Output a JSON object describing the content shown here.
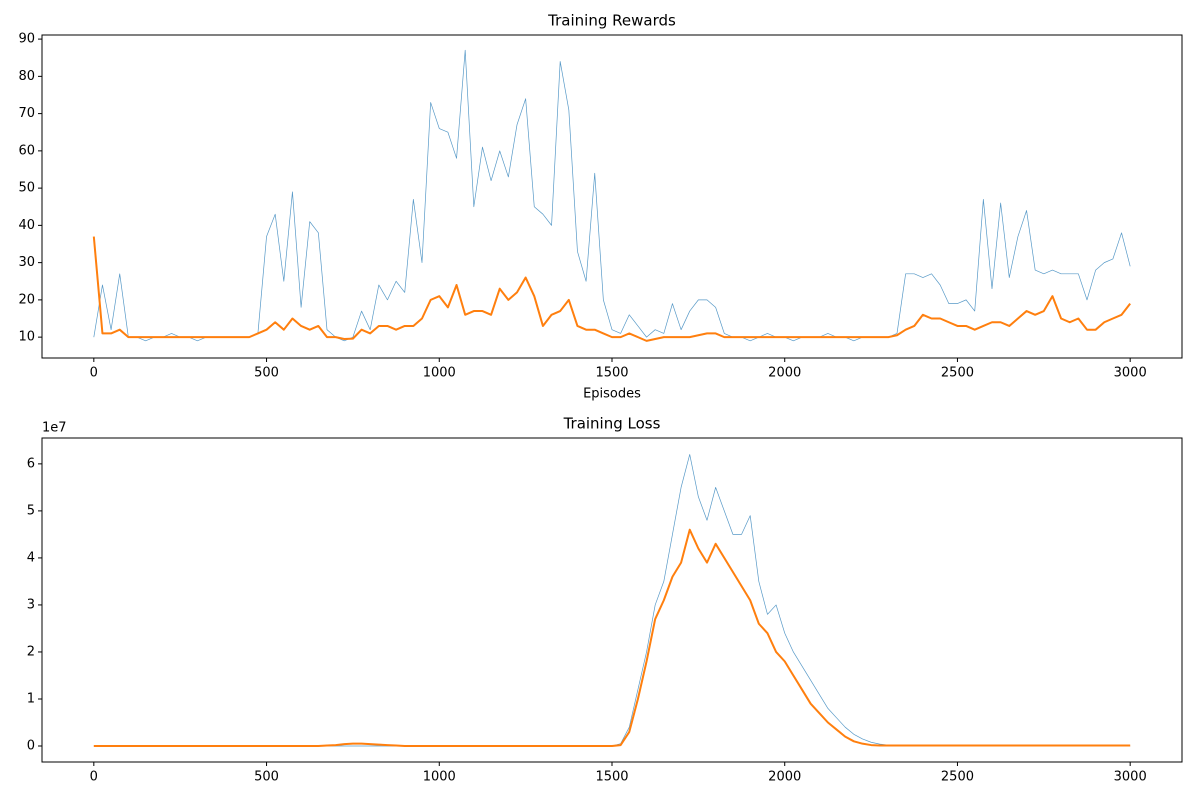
{
  "chart_data": [
    {
      "type": "line",
      "title": "Training Rewards",
      "xlabel": "Episodes",
      "x": [
        0,
        25,
        50,
        75,
        100,
        125,
        150,
        175,
        200,
        225,
        250,
        275,
        300,
        325,
        350,
        375,
        400,
        425,
        450,
        475,
        500,
        525,
        550,
        575,
        600,
        625,
        650,
        675,
        700,
        725,
        750,
        775,
        800,
        825,
        850,
        875,
        900,
        925,
        950,
        975,
        1000,
        1025,
        1050,
        1075,
        1100,
        1125,
        1150,
        1175,
        1200,
        1225,
        1250,
        1275,
        1300,
        1325,
        1350,
        1375,
        1400,
        1425,
        1450,
        1475,
        1500,
        1525,
        1550,
        1575,
        1600,
        1625,
        1650,
        1675,
        1700,
        1725,
        1750,
        1775,
        1800,
        1825,
        1850,
        1875,
        1900,
        1925,
        1950,
        1975,
        2000,
        2025,
        2050,
        2075,
        2100,
        2125,
        2150,
        2175,
        2200,
        2225,
        2250,
        2275,
        2300,
        2325,
        2350,
        2375,
        2400,
        2425,
        2450,
        2475,
        2500,
        2525,
        2550,
        2575,
        2600,
        2625,
        2650,
        2675,
        2700,
        2725,
        2750,
        2775,
        2800,
        2825,
        2850,
        2875,
        2900,
        2925,
        2950,
        2975,
        3000
      ],
      "series": [
        {
          "color": "#1f77b4",
          "values": [
            10,
            24,
            12,
            27,
            10,
            10,
            9,
            10,
            10,
            11,
            10,
            10,
            9,
            10,
            10,
            10,
            10,
            10,
            10,
            11,
            37,
            43,
            25,
            49,
            18,
            41,
            38,
            12,
            10,
            9,
            10,
            17,
            12,
            24,
            20,
            25,
            22,
            47,
            30,
            73,
            66,
            65,
            58,
            87,
            45,
            61,
            52,
            60,
            53,
            67,
            74,
            45,
            43,
            40,
            84,
            71,
            33,
            25,
            54,
            20,
            12,
            11,
            16,
            13,
            10,
            12,
            11,
            19,
            12,
            17,
            20,
            20,
            18,
            11,
            10,
            10,
            9,
            10,
            11,
            10,
            10,
            9,
            10,
            10,
            10,
            11,
            10,
            10,
            9,
            10,
            10,
            10,
            10,
            11,
            27,
            27,
            26,
            27,
            24,
            19,
            19,
            20,
            17,
            47,
            23,
            46,
            26,
            37,
            44,
            28,
            27,
            28,
            27,
            27,
            27,
            20,
            28,
            30,
            31,
            38,
            29
          ]
        },
        {
          "color": "#ff7f0e",
          "values": [
            37,
            11,
            11,
            12,
            10,
            10,
            10,
            10,
            10,
            10,
            10,
            10,
            10,
            10,
            10,
            10,
            10,
            10,
            10,
            11,
            12,
            14,
            12,
            15,
            13,
            12,
            13,
            10,
            10,
            9.5,
            9.6,
            12,
            11,
            13,
            13,
            12,
            13,
            13,
            15,
            20,
            21,
            18,
            24,
            16,
            17,
            17,
            16,
            23,
            20,
            22,
            26,
            21,
            13,
            16,
            17,
            20,
            13,
            12,
            12,
            11,
            10,
            10,
            11,
            10,
            9,
            9.5,
            10,
            10,
            10,
            10,
            10.5,
            11,
            11,
            10,
            10,
            10,
            10,
            10,
            10,
            10,
            10,
            10,
            10,
            10,
            10,
            10,
            10,
            10,
            10,
            10,
            10,
            10,
            10,
            10.5,
            12,
            13,
            16,
            15,
            15,
            14,
            13,
            13,
            12,
            13,
            14,
            14,
            13,
            15,
            17,
            16,
            17,
            21,
            15,
            14,
            15,
            12,
            12,
            14,
            15,
            16,
            19
          ]
        }
      ],
      "xlim": [
        -150,
        3150
      ],
      "xticks": [
        0,
        500,
        1000,
        1500,
        2000,
        2500,
        3000
      ],
      "ylim": [
        4.4,
        91.1
      ],
      "yticks": [
        10,
        20,
        30,
        40,
        50,
        60,
        70,
        80,
        90
      ],
      "grid": false
    },
    {
      "type": "line",
      "title": "Training Loss",
      "y_offset_label": "1e7",
      "x": [
        0,
        25,
        50,
        75,
        100,
        125,
        150,
        175,
        200,
        225,
        250,
        275,
        300,
        325,
        350,
        375,
        400,
        425,
        450,
        475,
        500,
        525,
        550,
        575,
        600,
        625,
        650,
        675,
        700,
        725,
        750,
        775,
        800,
        825,
        850,
        875,
        900,
        925,
        950,
        975,
        1000,
        1025,
        1050,
        1075,
        1100,
        1125,
        1150,
        1175,
        1200,
        1225,
        1250,
        1275,
        1300,
        1325,
        1350,
        1375,
        1400,
        1425,
        1450,
        1475,
        1500,
        1525,
        1550,
        1575,
        1600,
        1625,
        1650,
        1675,
        1700,
        1725,
        1750,
        1775,
        1800,
        1825,
        1850,
        1875,
        1900,
        1925,
        1950,
        1975,
        2000,
        2025,
        2050,
        2075,
        2100,
        2125,
        2150,
        2175,
        2200,
        2225,
        2250,
        2275,
        2300,
        2325,
        2350,
        2375,
        2400,
        2425,
        2450,
        2475,
        2500,
        2525,
        2550,
        2575,
        2600,
        2625,
        2650,
        2675,
        2700,
        2725,
        2750,
        2775,
        2800,
        2825,
        2850,
        2875,
        2900,
        2925,
        2950,
        2975,
        3000
      ],
      "series": [
        {
          "color": "#1f77b4",
          "values": [
            0,
            0,
            0,
            0,
            0,
            0,
            0,
            0,
            0,
            0,
            0,
            0,
            0,
            0,
            0,
            0,
            0,
            0,
            0,
            0,
            0,
            0,
            0,
            0,
            0,
            0,
            0,
            0,
            0,
            0,
            0,
            0,
            0,
            0,
            0,
            0,
            0,
            0,
            0,
            0,
            0,
            0,
            0,
            0,
            0,
            0,
            0,
            0,
            0,
            0,
            0,
            0,
            0,
            0,
            0,
            0,
            0,
            0,
            0,
            0,
            0,
            0.05,
            0.4,
            1.2,
            2.0,
            3.0,
            3.5,
            4.5,
            5.5,
            6.2,
            5.3,
            4.8,
            5.5,
            5.0,
            4.5,
            4.5,
            4.9,
            3.5,
            2.8,
            3.0,
            2.4,
            2.0,
            1.7,
            1.4,
            1.1,
            0.8,
            0.6,
            0.4,
            0.25,
            0.15,
            0.08,
            0.04,
            0.02,
            0,
            0,
            0,
            0,
            0,
            0,
            0,
            0,
            0,
            0,
            0,
            0,
            0,
            0,
            0,
            0,
            0,
            0,
            0,
            0,
            0,
            0,
            0,
            0,
            0,
            0,
            0,
            0
          ]
        },
        {
          "color": "#ff7f0e",
          "values": [
            0,
            0,
            0,
            0,
            0,
            0,
            0,
            0,
            0,
            0,
            0,
            0,
            0,
            0,
            0,
            0,
            0,
            0,
            0,
            0,
            0,
            0,
            0,
            0,
            0,
            0,
            0,
            0.01,
            0.02,
            0.04,
            0.05,
            0.05,
            0.04,
            0.03,
            0.02,
            0.01,
            0,
            0,
            0,
            0,
            0,
            0,
            0,
            0,
            0,
            0,
            0,
            0,
            0,
            0,
            0,
            0,
            0,
            0,
            0,
            0,
            0,
            0,
            0,
            0,
            0,
            0.02,
            0.3,
            1.0,
            1.8,
            2.7,
            3.1,
            3.6,
            3.9,
            4.6,
            4.2,
            3.9,
            4.3,
            4.0,
            3.7,
            3.4,
            3.1,
            2.6,
            2.4,
            2.0,
            1.8,
            1.5,
            1.2,
            0.9,
            0.7,
            0.5,
            0.35,
            0.2,
            0.1,
            0.05,
            0.02,
            0.01,
            0.01,
            0.01,
            0.01,
            0.01,
            0.01,
            0.01,
            0.01,
            0.01,
            0.01,
            0.01,
            0.01,
            0.01,
            0.01,
            0.01,
            0.01,
            0.01,
            0.01,
            0.01,
            0.01,
            0.01,
            0.01,
            0.01,
            0.01,
            0.01,
            0.01,
            0.01,
            0.01,
            0.01,
            0.01
          ]
        }
      ],
      "xlim": [
        -150,
        3150
      ],
      "xticks": [
        0,
        500,
        1000,
        1500,
        2000,
        2500,
        3000
      ],
      "ylim": [
        -0.34,
        6.55
      ],
      "yticks": [
        0,
        1,
        2,
        3,
        4,
        5,
        6
      ],
      "grid": false
    }
  ]
}
